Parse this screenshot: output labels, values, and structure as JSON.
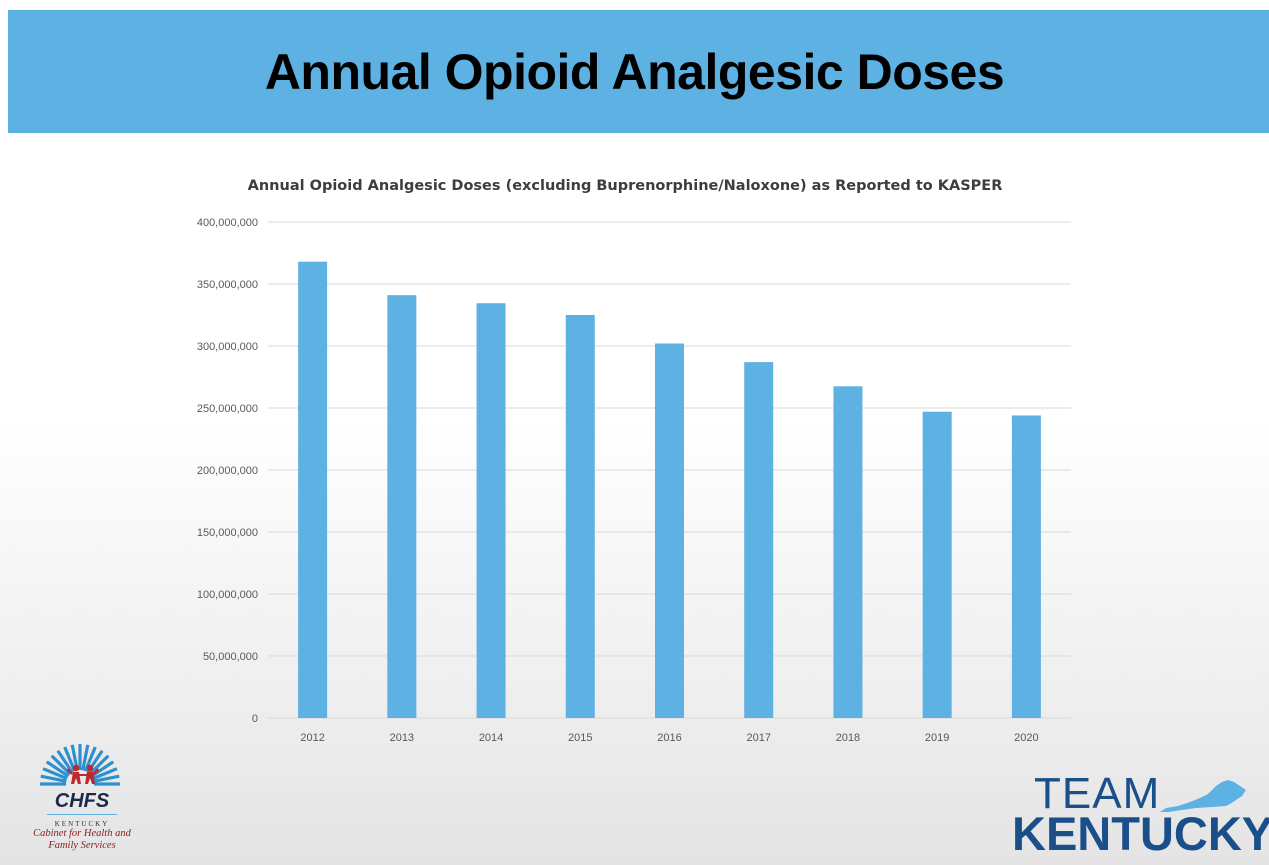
{
  "slide": {
    "title": "Annual Opioid Analgesic Doses"
  },
  "chart_data": {
    "type": "bar",
    "title": "Annual Opioid Analgesic Doses (excluding Buprenorphine/Naloxone) as Reported to KASPER",
    "categories": [
      "2012",
      "2013",
      "2014",
      "2015",
      "2016",
      "2017",
      "2018",
      "2019",
      "2020"
    ],
    "values": [
      368000000,
      341000000,
      334500000,
      325000000,
      302000000,
      287000000,
      267500000,
      247000000,
      244000000
    ],
    "ylim": [
      0,
      400000000
    ],
    "yticks": [
      0,
      50000000,
      100000000,
      150000000,
      200000000,
      250000000,
      300000000,
      350000000,
      400000000
    ],
    "ytick_labels": [
      "0",
      "50,000,000",
      "100,000,000",
      "150,000,000",
      "200,000,000",
      "250,000,000",
      "300,000,000",
      "350,000,000",
      "400,000,000"
    ],
    "grid": true,
    "bar_color": "#5eb1e3",
    "xlabel": "",
    "ylabel": ""
  },
  "logos": {
    "chfs": {
      "abbr": "CHFS",
      "state": "KENTUCKY",
      "name_line1": "Cabinet for Health and",
      "name_line2": "Family Services"
    },
    "team_kentucky": {
      "line1": "TEAM",
      "line2": "KENTUCKY"
    }
  },
  "colors": {
    "header_bg": "#5eb1e3",
    "bar": "#5eb1e3",
    "grid": "#d9d9d9",
    "axis_text": "#595959",
    "team_kentucky": "#1b4f8a"
  }
}
